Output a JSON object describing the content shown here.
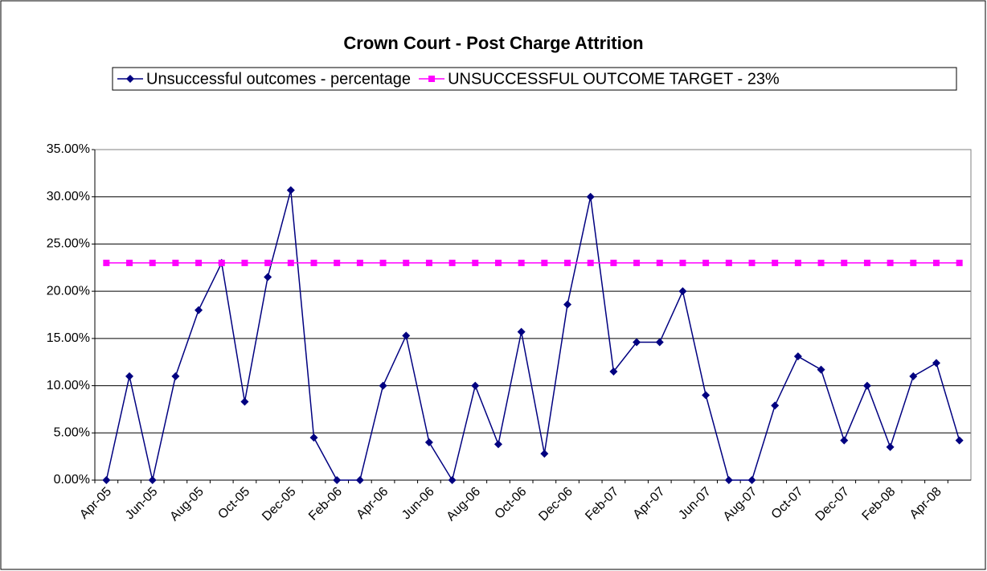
{
  "chart_data": {
    "type": "line",
    "title": "Crown Court - Post Charge Attrition",
    "categories": [
      "Apr-05",
      null,
      "Jun-05",
      null,
      "Aug-05",
      null,
      "Oct-05",
      null,
      "Dec-05",
      null,
      "Feb-06",
      null,
      "Apr-06",
      null,
      "Jun-06",
      null,
      "Aug-06",
      null,
      "Oct-06",
      null,
      "Dec-06",
      null,
      "Feb-07",
      null,
      "Apr-07",
      null,
      "Jun-07",
      null,
      "Aug-07",
      null,
      "Oct-07",
      null,
      "Dec-07",
      null,
      "Feb-08",
      null,
      "Apr-08",
      null
    ],
    "series": [
      {
        "name": "Unsuccessful outcomes - percentage",
        "color": "#000080",
        "marker": "diamond",
        "values": [
          0,
          11,
          0,
          11,
          18,
          23,
          8.3,
          21.5,
          30.7,
          4.5,
          0,
          0,
          10,
          15.3,
          4,
          0,
          10,
          3.8,
          15.7,
          2.8,
          18.6,
          30,
          11.5,
          14.6,
          14.6,
          20,
          9,
          0,
          0,
          7.9,
          13.1,
          11.7,
          4.2,
          10,
          3.5,
          11,
          12.4,
          4.2
        ]
      },
      {
        "name": "UNSUCCESSFUL OUTCOME TARGET - 23%",
        "color": "#ff00ff",
        "marker": "square",
        "values": [
          23,
          23,
          23,
          23,
          23,
          23,
          23,
          23,
          23,
          23,
          23,
          23,
          23,
          23,
          23,
          23,
          23,
          23,
          23,
          23,
          23,
          23,
          23,
          23,
          23,
          23,
          23,
          23,
          23,
          23,
          23,
          23,
          23,
          23,
          23,
          23,
          23,
          23
        ]
      }
    ],
    "ylim": [
      0,
      35
    ],
    "yticks": [
      {
        "value": 0,
        "label": "0.00%"
      },
      {
        "value": 5,
        "label": "5.00%"
      },
      {
        "value": 10,
        "label": "10.00%"
      },
      {
        "value": 15,
        "label": "15.00%"
      },
      {
        "value": 20,
        "label": "20.00%"
      },
      {
        "value": 25,
        "label": "25.00%"
      },
      {
        "value": 30,
        "label": "30.00%"
      },
      {
        "value": 35,
        "label": "35.00%"
      }
    ],
    "grid": true,
    "legend": "top"
  }
}
